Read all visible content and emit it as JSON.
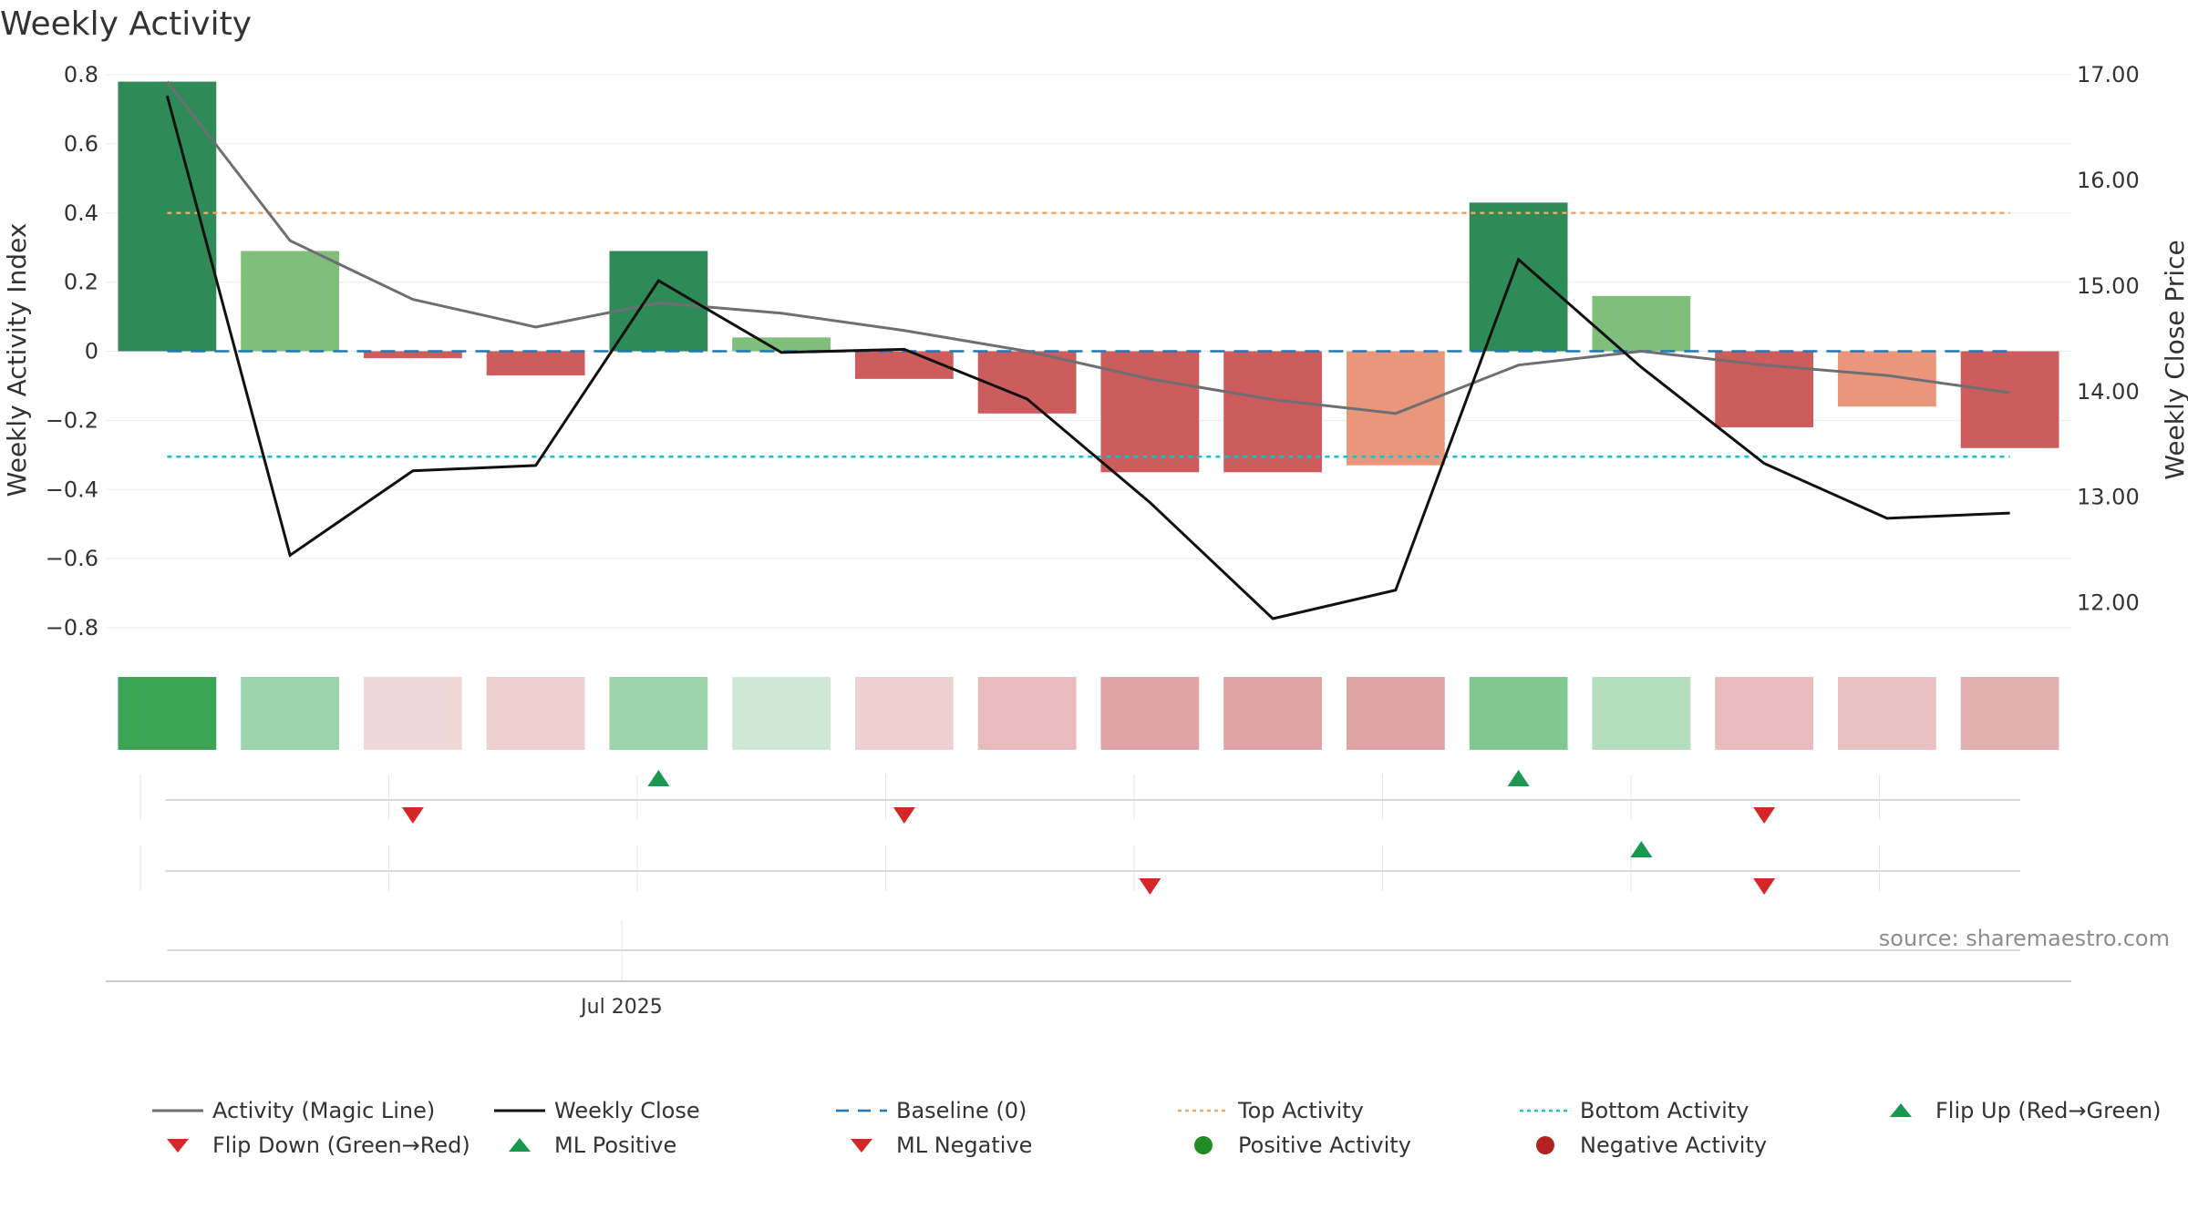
{
  "chart_data": {
    "type": "bar",
    "title": "Weekly Activity",
    "source": "source: sharemaestro.com",
    "ylabel_left": "Weekly Activity Index",
    "ylabel_right": "Weekly Close Price",
    "ylim_left": [
      -0.85,
      0.8
    ],
    "ylim_right": [
      11.6,
      17.0
    ],
    "yticks_left": [
      {
        "v": 0.8,
        "label": "0.8"
      },
      {
        "v": 0.6,
        "label": "0.6"
      },
      {
        "v": 0.4,
        "label": "0.4"
      },
      {
        "v": 0.2,
        "label": "0.2"
      },
      {
        "v": 0,
        "label": "0"
      },
      {
        "v": -0.2,
        "label": "−0.2"
      },
      {
        "v": -0.4,
        "label": "−0.4"
      },
      {
        "v": -0.6,
        "label": "−0.6"
      },
      {
        "v": -0.8,
        "label": "−0.8"
      }
    ],
    "yticks_right": [
      {
        "v": 17.0,
        "label": "17.00"
      },
      {
        "v": 16.0,
        "label": "16.00"
      },
      {
        "v": 15.0,
        "label": "15.00"
      },
      {
        "v": 14.0,
        "label": "14.00"
      },
      {
        "v": 13.0,
        "label": "13.00"
      },
      {
        "v": 12.0,
        "label": "12.00"
      }
    ],
    "x_tick_label": "Jul 2025",
    "x_tick_week": 4.2,
    "weeks": 16,
    "activity": [
      0.78,
      0.29,
      -0.02,
      -0.07,
      0.29,
      0.04,
      -0.08,
      -0.18,
      -0.35,
      -0.35,
      -0.33,
      0.43,
      0.16,
      -0.22,
      -0.16,
      -0.28
    ],
    "bar_colors": [
      "#2e8b57",
      "#7fbf7b",
      "#cd5c5c",
      "#cd5c5c",
      "#2e8b57",
      "#7fbf7b",
      "#cd5c5c",
      "#cd5c5c",
      "#cd5c5c",
      "#cd5c5c",
      "#e9967a",
      "#2e8b57",
      "#7fbf7b",
      "#cd5c5c",
      "#e9967a",
      "#cd5c5c"
    ],
    "magic_line": [
      0.78,
      0.32,
      0.15,
      0.07,
      0.14,
      0.11,
      0.06,
      0.0,
      -0.08,
      -0.14,
      -0.18,
      -0.04,
      0.0,
      -0.04,
      -0.07,
      -0.12
    ],
    "weekly_close": [
      16.8,
      12.45,
      13.25,
      13.3,
      15.05,
      14.37,
      14.4,
      13.93,
      12.95,
      11.85,
      12.12,
      15.25,
      14.23,
      13.32,
      12.8,
      12.85
    ],
    "baseline": 0,
    "top_activity": 0.4,
    "bottom_activity": -0.305,
    "heat_colors": [
      "#3aa655",
      "#9dd3aa",
      "#f1d8d8",
      "#efd0d0",
      "#9dd3aa",
      "#cde9d6",
      "#efd0d0",
      "#e8bcbc",
      "#dfa5a5",
      "#dfa5a5",
      "#dfa5a5",
      "#82c793",
      "#b4dfbf",
      "#e8bcbc",
      "#e9c2c2",
      "#e1b0ae"
    ],
    "flip_markers": [
      {
        "week": 2,
        "dir": "down"
      },
      {
        "week": 4,
        "dir": "up"
      },
      {
        "week": 6,
        "dir": "down"
      },
      {
        "week": 11,
        "dir": "up"
      },
      {
        "week": 13,
        "dir": "down"
      }
    ],
    "ml_markers": [
      {
        "week": 8,
        "dir": "down"
      },
      {
        "week": 12,
        "dir": "up"
      },
      {
        "week": 13,
        "dir": "down"
      }
    ],
    "colors": {
      "magic_line": "#6e6e73",
      "weekly_close": "#111111",
      "baseline": "#1f77b4",
      "top_activity": "#f4a261",
      "bottom_activity": "#17becf",
      "marker_up": "#1a9850",
      "marker_down": "#d62728",
      "positive_activity": "#228b22",
      "negative_activity": "#b22222"
    },
    "legend": [
      {
        "label": "Activity (Magic Line)",
        "icon": "line-solid-gray"
      },
      {
        "label": "Weekly Close",
        "icon": "line-solid-black"
      },
      {
        "label": "Baseline (0)",
        "icon": "line-dashed-blue"
      },
      {
        "label": "Top Activity",
        "icon": "line-dotted-orange"
      },
      {
        "label": "Bottom Activity",
        "icon": "line-dotted-cyan"
      },
      {
        "label": "Flip Up (Red→Green)",
        "icon": "triangle-up-green"
      },
      {
        "label": "Flip Down (Green→Red)",
        "icon": "triangle-down-red"
      },
      {
        "label": "ML Positive",
        "icon": "triangle-up-green"
      },
      {
        "label": "ML Negative",
        "icon": "triangle-down-red"
      },
      {
        "label": "Positive Activity",
        "icon": "circle-green"
      },
      {
        "label": "Negative Activity",
        "icon": "circle-red"
      }
    ]
  }
}
